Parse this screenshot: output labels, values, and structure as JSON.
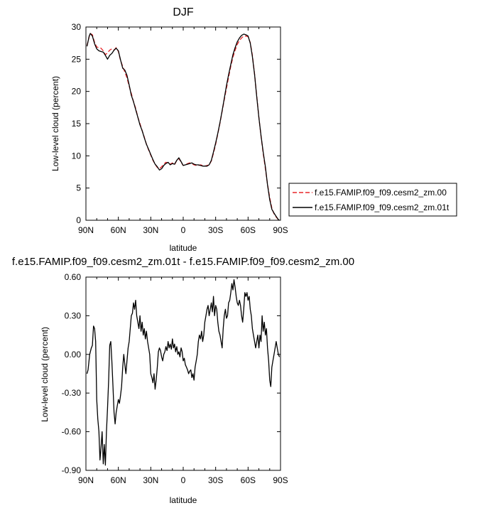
{
  "chart_data": [
    {
      "type": "line",
      "title": "DJF",
      "xlabel": "latitude",
      "ylabel": "Low-level cloud (percent)",
      "xlim": [
        90,
        -90
      ],
      "ylim": [
        0,
        30
      ],
      "x_ticks": [
        {
          "value": 90,
          "label": "90N"
        },
        {
          "value": 60,
          "label": "60N"
        },
        {
          "value": 30,
          "label": "30N"
        },
        {
          "value": 0,
          "label": "0"
        },
        {
          "value": -30,
          "label": "30S"
        },
        {
          "value": -60,
          "label": "60S"
        },
        {
          "value": -90,
          "label": "90S"
        }
      ],
      "y_ticks": [
        {
          "value": 0,
          "label": "0"
        },
        {
          "value": 5,
          "label": "5"
        },
        {
          "value": 10,
          "label": "10"
        },
        {
          "value": 15,
          "label": "15"
        },
        {
          "value": 20,
          "label": "20"
        },
        {
          "value": 25,
          "label": "25"
        },
        {
          "value": 30,
          "label": "30"
        }
      ],
      "grid": false,
      "legend": "right",
      "series": [
        {
          "name": "f.e15.FAMIP.f09_f09.cesm2_zm.00",
          "color": "#e8262a",
          "dash": "dashed",
          "x": [
            89,
            87,
            86,
            84,
            82,
            80,
            78,
            76,
            74,
            72,
            70,
            68,
            66,
            64,
            62,
            60,
            58,
            56,
            54,
            52,
            50,
            48,
            46,
            44,
            42,
            40,
            38,
            36,
            34,
            32,
            30,
            28,
            26,
            24,
            22,
            20,
            18,
            16,
            14,
            12,
            10,
            8,
            6,
            4,
            2,
            0,
            -2,
            -4,
            -6,
            -8,
            -10,
            -12,
            -14,
            -16,
            -18,
            -20,
            -22,
            -24,
            -26,
            -28,
            -30,
            -32,
            -34,
            -36,
            -38,
            -40,
            -42,
            -44,
            -46,
            -48,
            -50,
            -52,
            -54,
            -56,
            -58,
            -60,
            -62,
            -64,
            -66,
            -68,
            -70,
            -72,
            -74,
            -76,
            -78,
            -80,
            -82,
            -84,
            -86,
            -88,
            -89
          ],
          "y": [
            27.1,
            28.5,
            29.0,
            28.8,
            27.6,
            26.9,
            26.8,
            26.7,
            26.3,
            25.7,
            26.0,
            26.4,
            26.6,
            26.4,
            26.8,
            26.2,
            24.8,
            23.9,
            23.0,
            22.1,
            20.8,
            19.7,
            18.4,
            17.4,
            16.0,
            15.0,
            13.9,
            12.9,
            11.8,
            10.9,
            10.1,
            9.3,
            8.7,
            8.2,
            8.0,
            8.3,
            8.7,
            9.0,
            8.9,
            8.7,
            8.9,
            8.6,
            9.3,
            9.6,
            9.0,
            8.5,
            8.6,
            8.8,
            8.9,
            8.8,
            8.6,
            8.5,
            8.5,
            8.6,
            8.5,
            8.4,
            8.5,
            8.6,
            9.2,
            10.4,
            11.8,
            13.4,
            15.1,
            16.9,
            18.7,
            20.5,
            22.2,
            23.9,
            25.3,
            26.4,
            27.3,
            27.9,
            28.3,
            28.6,
            28.6,
            28.5,
            27.6,
            25.6,
            22.7,
            19.3,
            15.9,
            13.0,
            10.4,
            8.0,
            5.6,
            3.5,
            1.9,
            1.0,
            0.5,
            0.1,
            0.0
          ]
        },
        {
          "name": "f.e15.FAMIP.f09_f09.cesm2_zm.01t",
          "color": "#000000",
          "dash": "solid",
          "x": [
            89,
            87,
            86,
            84,
            82,
            80,
            78,
            76,
            74,
            72,
            70,
            68,
            66,
            64,
            62,
            60,
            58,
            56,
            54,
            52,
            50,
            48,
            46,
            44,
            42,
            40,
            38,
            36,
            34,
            32,
            30,
            28,
            26,
            24,
            22,
            20,
            18,
            16,
            14,
            12,
            10,
            8,
            6,
            4,
            2,
            0,
            -2,
            -4,
            -6,
            -8,
            -10,
            -12,
            -14,
            -16,
            -18,
            -20,
            -22,
            -24,
            -26,
            -28,
            -30,
            -32,
            -34,
            -36,
            -38,
            -40,
            -42,
            -44,
            -46,
            -48,
            -50,
            -52,
            -54,
            -56,
            -58,
            -60,
            -62,
            -64,
            -66,
            -68,
            -70,
            -72,
            -74,
            -76,
            -78,
            -80,
            -82,
            -84,
            -86,
            -88,
            -89
          ],
          "y": [
            27.0,
            28.6,
            29.0,
            28.6,
            27.4,
            26.6,
            26.3,
            26.2,
            26.1,
            25.6,
            25.0,
            25.6,
            25.9,
            26.4,
            26.7,
            26.3,
            24.9,
            23.6,
            23.3,
            22.5,
            21.0,
            19.4,
            18.4,
            17.2,
            16.0,
            14.8,
            13.9,
            12.8,
            11.8,
            11.0,
            10.2,
            9.4,
            8.7,
            8.3,
            7.8,
            8.0,
            8.5,
            8.8,
            9.0,
            8.6,
            8.8,
            8.7,
            9.3,
            9.7,
            9.1,
            8.5,
            8.6,
            8.7,
            8.8,
            8.9,
            8.7,
            8.6,
            8.6,
            8.5,
            8.4,
            8.4,
            8.4,
            8.6,
            9.3,
            10.6,
            12.0,
            13.5,
            15.2,
            17.0,
            18.9,
            20.9,
            22.6,
            24.2,
            25.7,
            26.8,
            27.7,
            28.3,
            28.7,
            28.9,
            28.8,
            28.6,
            27.5,
            25.4,
            22.6,
            19.2,
            15.9,
            13.1,
            10.6,
            8.3,
            5.5,
            3.2,
            1.7,
            1.1,
            0.6,
            0.1,
            0.0
          ]
        }
      ]
    },
    {
      "type": "line",
      "title": "f.e15.FAMIP.f09_f09.cesm2_zm.01t - f.e15.FAMIP.f09_f09.cesm2_zm.00",
      "xlabel": "latitude",
      "ylabel": "Low-level cloud (percent)",
      "xlim": [
        90,
        -90
      ],
      "ylim": [
        -0.9,
        0.6
      ],
      "x_ticks": [
        {
          "value": 90,
          "label": "90N"
        },
        {
          "value": 60,
          "label": "60N"
        },
        {
          "value": 30,
          "label": "30N"
        },
        {
          "value": 0,
          "label": "0"
        },
        {
          "value": -30,
          "label": "30S"
        },
        {
          "value": -60,
          "label": "60S"
        },
        {
          "value": -90,
          "label": "90S"
        }
      ],
      "y_ticks": [
        {
          "value": -0.9,
          "label": "-0.90"
        },
        {
          "value": -0.6,
          "label": "-0.60"
        },
        {
          "value": -0.3,
          "label": "-0.30"
        },
        {
          "value": 0.0,
          "label": "0.00"
        },
        {
          "value": 0.3,
          "label": "0.30"
        },
        {
          "value": 0.6,
          "label": "0.60"
        }
      ],
      "grid": false,
      "series": [
        {
          "color": "#000000",
          "dash": "solid",
          "x": [
            89,
            88,
            86.5,
            85,
            84,
            83,
            82,
            81,
            80,
            79,
            78,
            77,
            76,
            75,
            74,
            73,
            72,
            71,
            70,
            69,
            68,
            67,
            66,
            65,
            64,
            63,
            62,
            61,
            60,
            59,
            58,
            57,
            56,
            55,
            54,
            53,
            52,
            51,
            50,
            49,
            48,
            47,
            46,
            45,
            44,
            43,
            42,
            41,
            40,
            39,
            38,
            37,
            36,
            35,
            34,
            33,
            32,
            31,
            30,
            29,
            28,
            27,
            26,
            25,
            24,
            23,
            22,
            21,
            20,
            19,
            18,
            17,
            16,
            15,
            14,
            13,
            12,
            11,
            10,
            9,
            8,
            7,
            6,
            5,
            4,
            3,
            2,
            1,
            0,
            -1,
            -2,
            -3,
            -4,
            -5,
            -6,
            -7,
            -8,
            -9,
            -10,
            -11,
            -12,
            -13,
            -14,
            -15,
            -16,
            -17,
            -18,
            -19,
            -20,
            -21,
            -22,
            -23,
            -24,
            -25,
            -26,
            -27,
            -28,
            -29,
            -30,
            -31,
            -32,
            -33,
            -34,
            -35,
            -36,
            -37,
            -38,
            -39,
            -40,
            -41,
            -42,
            -43,
            -44,
            -45,
            -46,
            -47,
            -48,
            -49,
            -50,
            -51,
            -52,
            -53,
            -54,
            -55,
            -56,
            -57,
            -58,
            -59,
            -60,
            -61,
            -62,
            -63,
            -64,
            -65,
            -66,
            -67,
            -68,
            -69,
            -70,
            -71,
            -72,
            -73,
            -74,
            -75,
            -76,
            -77,
            -78,
            -79,
            -80,
            -81,
            -82,
            -83,
            -84,
            -85,
            -86,
            -87,
            -88,
            -89
          ],
          "y": [
            -0.15,
            -0.12,
            0.0,
            0.05,
            0.07,
            0.22,
            0.2,
            0.1,
            -0.35,
            -0.5,
            -0.6,
            -0.82,
            -0.72,
            -0.6,
            -0.85,
            -0.7,
            -0.86,
            -0.6,
            -0.42,
            -0.2,
            0.07,
            0.1,
            -0.05,
            -0.25,
            -0.45,
            -0.54,
            -0.45,
            -0.4,
            -0.35,
            -0.38,
            -0.32,
            -0.25,
            -0.1,
            0.0,
            -0.08,
            -0.15,
            -0.05,
            0.05,
            0.1,
            0.2,
            0.3,
            0.32,
            0.4,
            0.35,
            0.42,
            0.3,
            0.25,
            0.2,
            0.3,
            0.18,
            0.25,
            0.15,
            0.2,
            0.12,
            0.18,
            0.1,
            0.05,
            0.0,
            -0.15,
            -0.18,
            -0.22,
            -0.15,
            -0.27,
            -0.2,
            -0.1,
            0.02,
            0.05,
            0.03,
            -0.02,
            -0.05,
            0.0,
            0.02,
            0.06,
            0.03,
            0.1,
            0.05,
            0.08,
            0.04,
            0.12,
            0.05,
            0.08,
            0.02,
            0.06,
            0.0,
            0.02,
            -0.02,
            0.05,
            0.02,
            -0.05,
            -0.03,
            -0.08,
            -0.1,
            -0.12,
            -0.15,
            -0.13,
            -0.12,
            -0.18,
            -0.15,
            -0.2,
            -0.1,
            -0.05,
            0.0,
            0.1,
            0.15,
            0.12,
            0.18,
            0.1,
            0.15,
            0.25,
            0.3,
            0.35,
            0.38,
            0.3,
            0.35,
            0.4,
            0.33,
            0.45,
            0.3,
            0.38,
            0.35,
            0.25,
            0.18,
            0.15,
            0.1,
            0.05,
            0.2,
            0.3,
            0.35,
            0.28,
            0.3,
            0.4,
            0.42,
            0.48,
            0.55,
            0.5,
            0.58,
            0.52,
            0.45,
            0.4,
            0.38,
            0.42,
            0.38,
            0.3,
            0.25,
            0.35,
            0.48,
            0.45,
            0.48,
            0.42,
            0.45,
            0.35,
            0.3,
            0.2,
            0.15,
            0.1,
            0.05,
            0.1,
            0.15,
            0.05,
            0.15,
            0.1,
            0.3,
            0.18,
            0.25,
            0.15,
            0.2,
            0.05,
            -0.05,
            -0.2,
            -0.25,
            -0.1,
            -0.05,
            0.0,
            0.05,
            0.1,
            0.05,
            0.0,
            -0.02
          ]
        }
      ]
    }
  ]
}
